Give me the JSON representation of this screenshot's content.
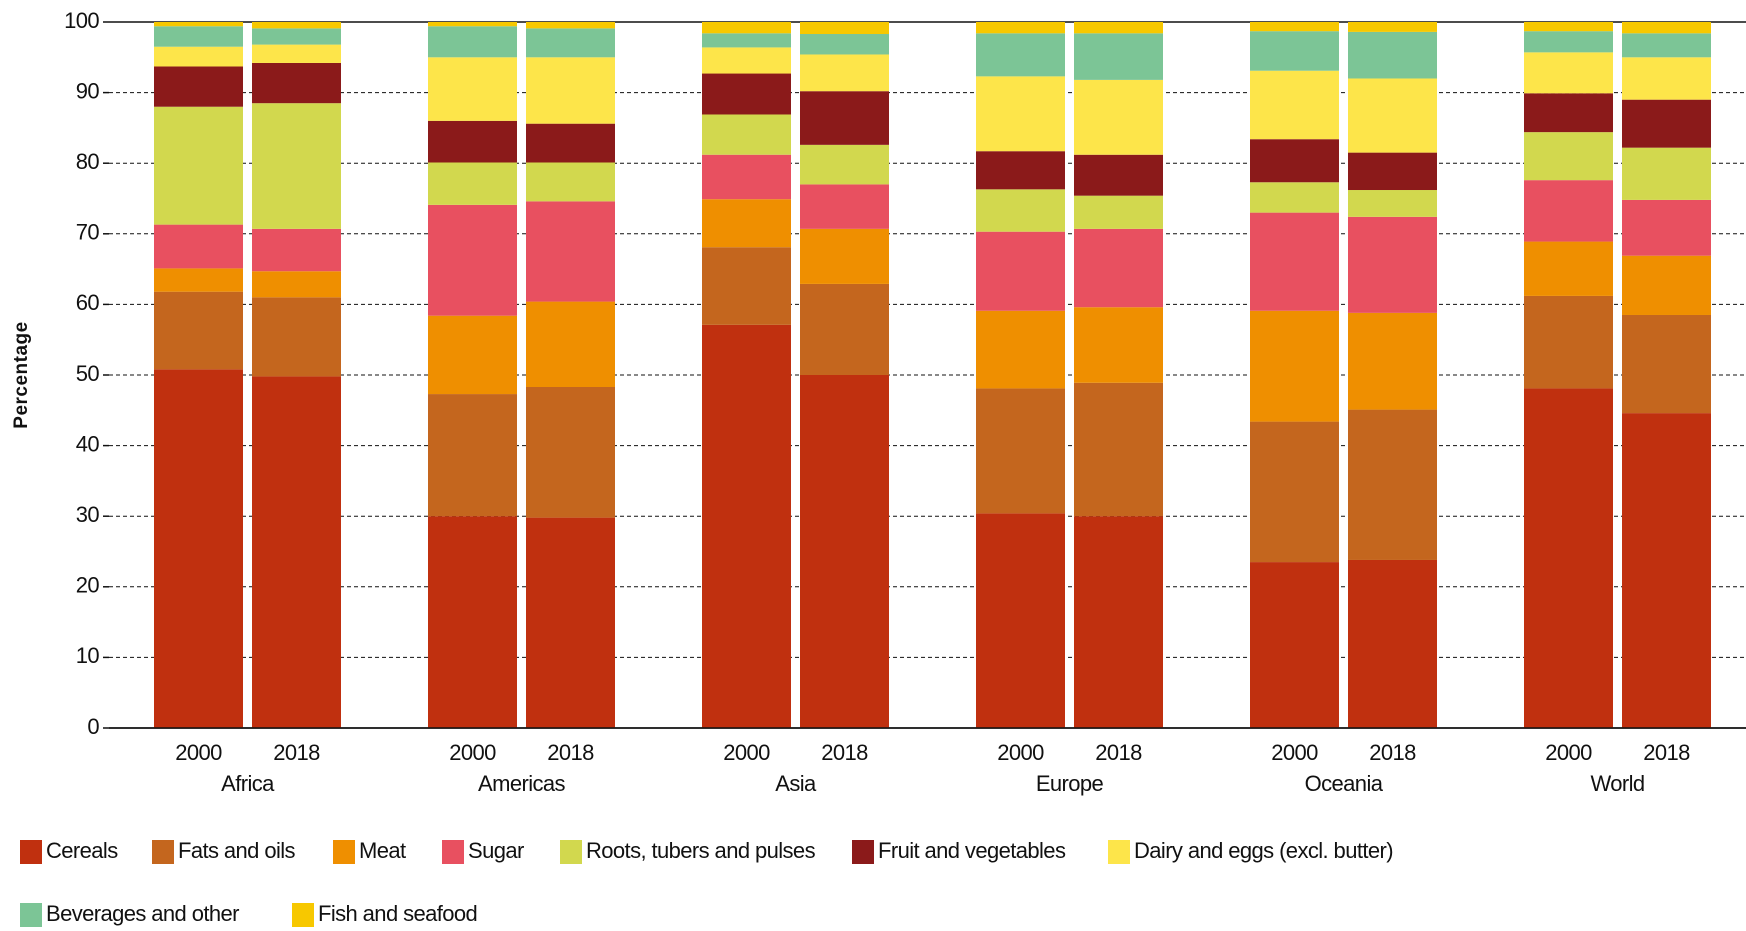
{
  "chart_data": {
    "type": "stacked_bar",
    "y_label": "Percentage",
    "groups": [
      "Africa",
      "Americas",
      "Asia",
      "Europe",
      "Oceania",
      "World"
    ],
    "categories": [
      "2000",
      "2018",
      "2000",
      "2018",
      "2000",
      "2018",
      "2000",
      "2018",
      "2000",
      "2018",
      "2000",
      "2018"
    ],
    "ylim": [
      0,
      100
    ],
    "yticks": [
      0,
      10,
      20,
      30,
      40,
      50,
      60,
      70,
      80,
      90,
      100
    ],
    "grid": true,
    "series": [
      {
        "name": "Cereals",
        "color": "#c0300f",
        "values": [
          50.8,
          49.8,
          30.0,
          29.8,
          57.1,
          50.0,
          30.4,
          30.0,
          23.5,
          23.8,
          48.1,
          44.6
        ]
      },
      {
        "name": "Fats and oils",
        "color": "#c4661e",
        "values": [
          11.0,
          11.2,
          17.3,
          18.5,
          11.0,
          12.9,
          17.7,
          18.9,
          19.9,
          21.3,
          13.1,
          13.9
        ]
      },
      {
        "name": "Meat",
        "color": "#ef8f00",
        "values": [
          3.3,
          3.7,
          11.1,
          12.1,
          6.8,
          7.8,
          11.0,
          10.7,
          15.7,
          13.7,
          7.7,
          8.4
        ]
      },
      {
        "name": "Sugar",
        "color": "#e85060",
        "values": [
          6.2,
          6.0,
          15.7,
          14.2,
          6.3,
          6.3,
          11.2,
          11.1,
          13.9,
          13.6,
          8.7,
          7.9
        ]
      },
      {
        "name": "Roots, tubers and pulses",
        "color": "#d2d84e",
        "values": [
          16.7,
          17.8,
          6.0,
          5.5,
          5.7,
          5.6,
          6.0,
          4.7,
          4.3,
          3.8,
          6.8,
          7.4
        ]
      },
      {
        "name": "Fruit and vegetables",
        "color": "#8b1a1a",
        "values": [
          5.7,
          5.7,
          5.9,
          5.5,
          5.8,
          7.6,
          5.4,
          5.8,
          6.1,
          5.3,
          5.5,
          6.8
        ]
      },
      {
        "name": "Dairy and eggs (excl. butter)",
        "color": "#fde54a",
        "values": [
          2.8,
          2.6,
          9.0,
          9.4,
          3.7,
          5.2,
          10.6,
          10.6,
          9.7,
          10.5,
          5.8,
          6.0
        ]
      },
      {
        "name": "Beverages and other",
        "color": "#7cc596",
        "values": [
          2.9,
          2.3,
          4.4,
          4.1,
          2.0,
          2.9,
          6.1,
          6.6,
          5.6,
          6.6,
          3.0,
          3.4
        ]
      },
      {
        "name": "Fish and seafood",
        "color": "#f7c800",
        "values": [
          0.6,
          0.9,
          0.6,
          0.9,
          1.6,
          1.7,
          1.6,
          1.6,
          1.3,
          1.4,
          1.3,
          1.6
        ]
      }
    ]
  }
}
